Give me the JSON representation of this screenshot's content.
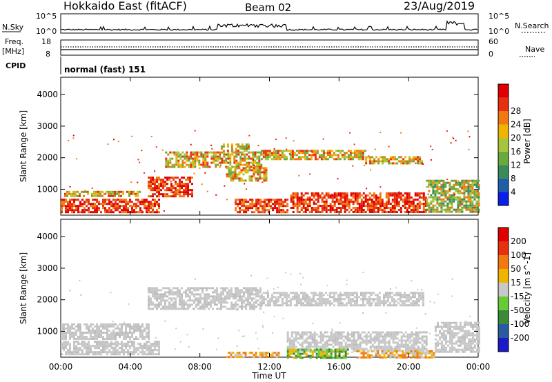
{
  "header": {
    "station": "Hokkaido East (fitACF)",
    "beam": "Beam 02",
    "date": "23/Aug/2019"
  },
  "strip": {
    "nsky_label": "N.Sky",
    "nsky_ticks": [
      "10^5",
      "10^0"
    ],
    "nsearch_label": "N.Search",
    "nsearch_ticks": [
      "10^5",
      "10^0"
    ],
    "freq_label": "Freq.",
    "freq_unit": "[MHz]",
    "freq_ticks": [
      "18",
      "8"
    ],
    "nave_label": "Nave",
    "nave_ticks": [
      "60",
      "0"
    ],
    "cpid_label": "CPID",
    "cpid_value": "normal (fast) 151"
  },
  "chart_data": [
    {
      "type": "heatmap",
      "panel": "power",
      "xlabel": "",
      "ylabel": "Slant Range [km]",
      "x_ticks": [
        "00:00",
        "04:00",
        "08:00",
        "12:00",
        "16:00",
        "20:00",
        "00:00"
      ],
      "xlim_hours": [
        0,
        24
      ],
      "ylim_km": [
        180,
        4550
      ],
      "y_ticks": [
        1000,
        2000,
        3000,
        4000
      ],
      "colorbar": {
        "label": "Power [dB]",
        "ticks": [
          "4",
          "8",
          "12",
          "16",
          "20",
          "24",
          "28"
        ],
        "colors": [
          "#0a1ee6",
          "#1f5fa8",
          "#3a8a5a",
          "#6aaa3a",
          "#a8c43a",
          "#f0b400",
          "#f07a10",
          "#e83010",
          "#e00000"
        ]
      },
      "regions": [
        {
          "t0": 0.0,
          "t1": 5.7,
          "r0": 250,
          "r1": 700,
          "level": "high"
        },
        {
          "t0": 0.2,
          "t1": 4.5,
          "r0": 780,
          "r1": 950,
          "level": "medium"
        },
        {
          "t0": 5.0,
          "t1": 7.6,
          "r0": 800,
          "r1": 1400,
          "level": "high"
        },
        {
          "t0": 6.0,
          "t1": 11.5,
          "r0": 1700,
          "r1": 2200,
          "level": "medium"
        },
        {
          "t0": 9.5,
          "t1": 11.8,
          "r0": 1300,
          "r1": 1700,
          "level": "medium"
        },
        {
          "t0": 9.2,
          "t1": 10.8,
          "r0": 2200,
          "r1": 2450,
          "level": "medium"
        },
        {
          "t0": 11.5,
          "t1": 17.5,
          "r0": 1950,
          "r1": 2250,
          "level": "medium"
        },
        {
          "t0": 17.5,
          "t1": 20.8,
          "r0": 1800,
          "r1": 2050,
          "level": "medium"
        },
        {
          "t0": 13.2,
          "t1": 21.0,
          "r0": 300,
          "r1": 900,
          "level": "high"
        },
        {
          "t0": 10.0,
          "t1": 13.0,
          "r0": 250,
          "r1": 700,
          "level": "high"
        },
        {
          "t0": 21.0,
          "t1": 24.0,
          "r0": 300,
          "r1": 1300,
          "level": "low"
        }
      ]
    },
    {
      "type": "heatmap",
      "panel": "velocity",
      "xlabel": "Time UT",
      "ylabel": "Slant Range [km]",
      "x_ticks": [
        "00:00",
        "04:00",
        "08:00",
        "12:00",
        "16:00",
        "20:00",
        "00:00"
      ],
      "xlim_hours": [
        0,
        24
      ],
      "ylim_km": [
        180,
        4550
      ],
      "y_ticks": [
        1000,
        2000,
        3000,
        4000
      ],
      "colorbar": {
        "label": "Velocity [m s^-1]",
        "ticks": [
          "200",
          "100",
          "50",
          "15",
          "-15",
          "-50",
          "-100",
          "-200"
        ],
        "colors": [
          "#1a1ac8",
          "#2a5aa0",
          "#3a8a3a",
          "#66cc33",
          "#c8c8c8",
          "#f0b400",
          "#f07a10",
          "#e83010",
          "#e00000"
        ]
      },
      "regions": [
        {
          "t0": 0.0,
          "t1": 5.7,
          "r0": 250,
          "r1": 700,
          "level": "grey"
        },
        {
          "t0": 0.0,
          "t1": 5.0,
          "r0": 780,
          "r1": 1250,
          "level": "grey"
        },
        {
          "t0": 5.0,
          "t1": 11.5,
          "r0": 1700,
          "r1": 2400,
          "level": "grey"
        },
        {
          "t0": 11.5,
          "t1": 20.8,
          "r0": 1850,
          "r1": 2250,
          "level": "grey"
        },
        {
          "t0": 13.0,
          "t1": 21.0,
          "r0": 400,
          "r1": 1000,
          "level": "grey"
        },
        {
          "t0": 9.5,
          "t1": 12.5,
          "r0": 200,
          "r1": 350,
          "level": "orange"
        },
        {
          "t0": 13.0,
          "t1": 16.5,
          "r0": 180,
          "r1": 450,
          "level": "green"
        },
        {
          "t0": 17.0,
          "t1": 21.5,
          "r0": 180,
          "r1": 400,
          "level": "orange"
        },
        {
          "t0": 21.5,
          "t1": 24.0,
          "r0": 350,
          "r1": 1300,
          "level": "grey"
        }
      ]
    }
  ]
}
